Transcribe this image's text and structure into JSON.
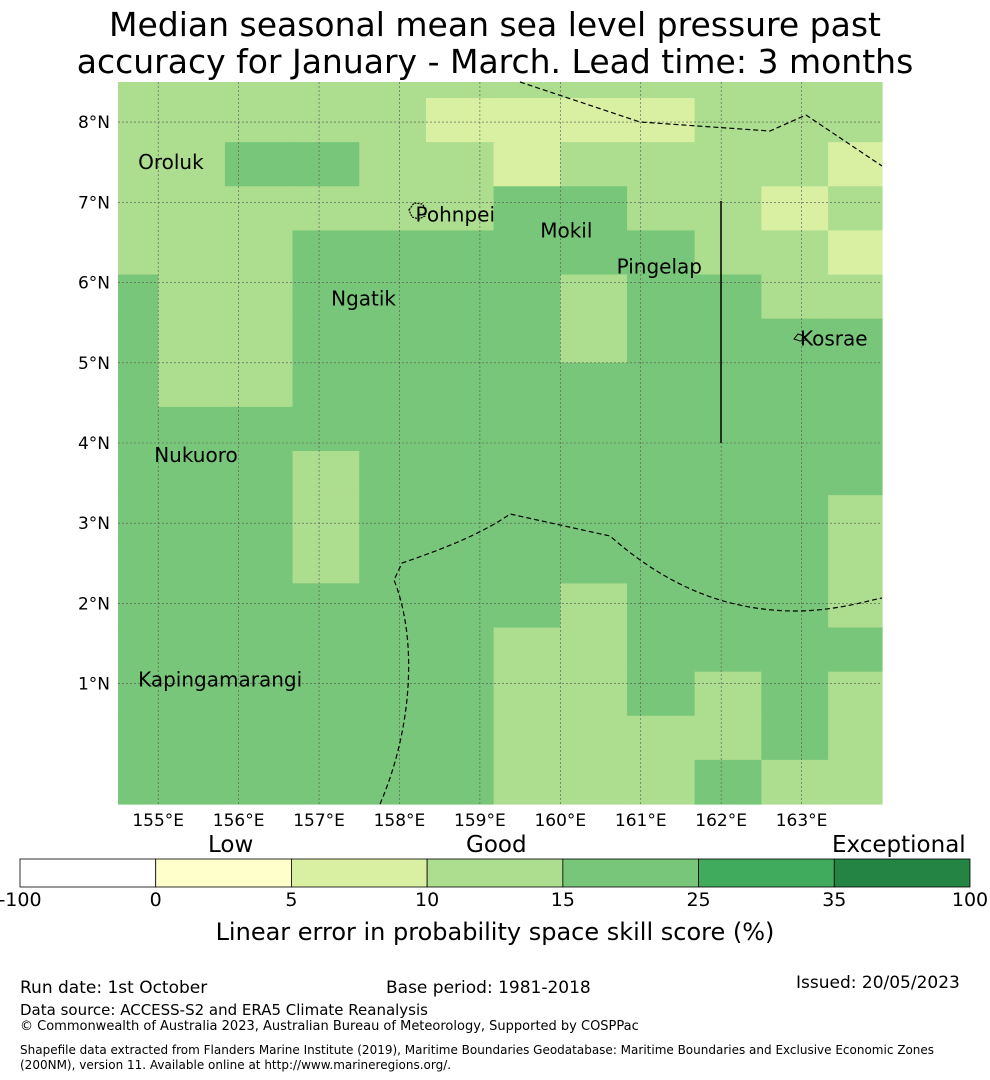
{
  "title": {
    "line1": "Median seasonal mean sea level pressure past",
    "line2": "accuracy for January - March. Lead time: 3 months"
  },
  "map": {
    "lat_labels": [
      "8°N",
      "7°N",
      "6°N",
      "5°N",
      "4°N",
      "3°N",
      "2°N",
      "1°N"
    ],
    "lon_labels": [
      "155°E",
      "156°E",
      "157°E",
      "158°E",
      "159°E",
      "160°E",
      "161°E",
      "162°E",
      "163°E"
    ],
    "places": [
      {
        "name": "Oroluk",
        "lon": 154.75,
        "lat": 7.5
      },
      {
        "name": "Pohnpei",
        "lon": 158.2,
        "lat": 6.85
      },
      {
        "name": "Mokil",
        "lon": 159.75,
        "lat": 6.65
      },
      {
        "name": "Pingelap",
        "lon": 160.7,
        "lat": 6.2
      },
      {
        "name": "Ngatik",
        "lon": 157.15,
        "lat": 5.8
      },
      {
        "name": "Kosrae",
        "lon": 162.98,
        "lat": 5.3
      },
      {
        "name": "Nukuoro",
        "lon": 154.95,
        "lat": 3.85
      },
      {
        "name": "Kapingamarangi",
        "lon": 154.75,
        "lat": 1.05
      }
    ],
    "grid_lon_edges": [
      154.5,
      155.0,
      155.83,
      156.67,
      157.5,
      158.33,
      159.17,
      160.0,
      160.83,
      161.67,
      162.5,
      163.33,
      164.0
    ],
    "grid_lat_edges": [
      8.5,
      8.3,
      7.75,
      7.2,
      6.65,
      6.1,
      5.55,
      5.0,
      4.45,
      3.9,
      3.35,
      2.8,
      2.25,
      1.7,
      1.15,
      0.6,
      0.05,
      -0.5
    ],
    "grid_classes": [
      [
        3,
        3,
        3,
        3,
        3,
        3,
        3,
        3,
        3,
        3,
        3,
        3
      ],
      [
        3,
        3,
        3,
        3,
        3,
        2,
        2,
        2,
        2,
        3,
        3,
        3
      ],
      [
        3,
        3,
        4,
        4,
        3,
        3,
        2,
        3,
        3,
        3,
        3,
        2
      ],
      [
        3,
        3,
        3,
        3,
        3,
        3,
        4,
        4,
        3,
        3,
        2,
        3
      ],
      [
        3,
        3,
        3,
        4,
        4,
        4,
        4,
        4,
        4,
        3,
        3,
        2
      ],
      [
        4,
        3,
        3,
        4,
        4,
        4,
        4,
        3,
        4,
        4,
        3,
        3
      ],
      [
        4,
        3,
        3,
        4,
        4,
        4,
        4,
        3,
        4,
        4,
        4,
        4
      ],
      [
        4,
        3,
        3,
        4,
        4,
        4,
        4,
        4,
        4,
        4,
        4,
        4
      ],
      [
        4,
        4,
        4,
        4,
        4,
        4,
        4,
        4,
        4,
        4,
        4,
        4
      ],
      [
        4,
        4,
        4,
        3,
        4,
        4,
        4,
        4,
        4,
        4,
        4,
        4
      ],
      [
        4,
        4,
        4,
        3,
        4,
        4,
        4,
        4,
        4,
        4,
        4,
        3
      ],
      [
        4,
        4,
        4,
        3,
        4,
        4,
        4,
        4,
        4,
        4,
        4,
        3
      ],
      [
        4,
        4,
        4,
        4,
        4,
        4,
        4,
        3,
        4,
        4,
        4,
        3
      ],
      [
        4,
        4,
        4,
        4,
        4,
        4,
        3,
        3,
        4,
        4,
        4,
        4
      ],
      [
        4,
        4,
        4,
        4,
        4,
        4,
        3,
        3,
        4,
        3,
        4,
        3
      ],
      [
        4,
        4,
        4,
        4,
        4,
        4,
        3,
        3,
        3,
        3,
        4,
        3
      ],
      [
        4,
        4,
        4,
        4,
        4,
        4,
        3,
        3,
        3,
        4,
        3,
        3
      ]
    ],
    "colors": {
      "land": "#000000",
      "grid_line": "#555555",
      "boundary": "#000000"
    }
  },
  "colorbar": {
    "categories": [
      "Low",
      "Good",
      "Exceptional"
    ],
    "tick_labels": [
      "-100",
      "0",
      "5",
      "10",
      "15",
      "25",
      "35",
      "100"
    ],
    "colors": [
      "#ffffff",
      "#ffffcc",
      "#d9f0a3",
      "#addd8e",
      "#78c679",
      "#41ab5d",
      "#238443"
    ],
    "label": "Linear error in probability space skill score (%)"
  },
  "footer": {
    "run_date": "Run date: 1st October",
    "base_period": "Base period: 1981-2018",
    "issued": "Issued: 20/05/2023",
    "data_source": "Data source: ACCESS-S2 and ERA5 Climate Reanalysis",
    "copyright": "© Commonwealth of Australia 2023, Australian Bureau of Meteorology, Supported by COSPPac",
    "shapefile": "Shapefile data extracted from Flanders Marine Institute (2019), Maritime Boundaries Geodatabase: Maritime Boundaries and Exclusive Economic Zones (200NM), version 11. Available online at http://www.marineregions.org/."
  }
}
